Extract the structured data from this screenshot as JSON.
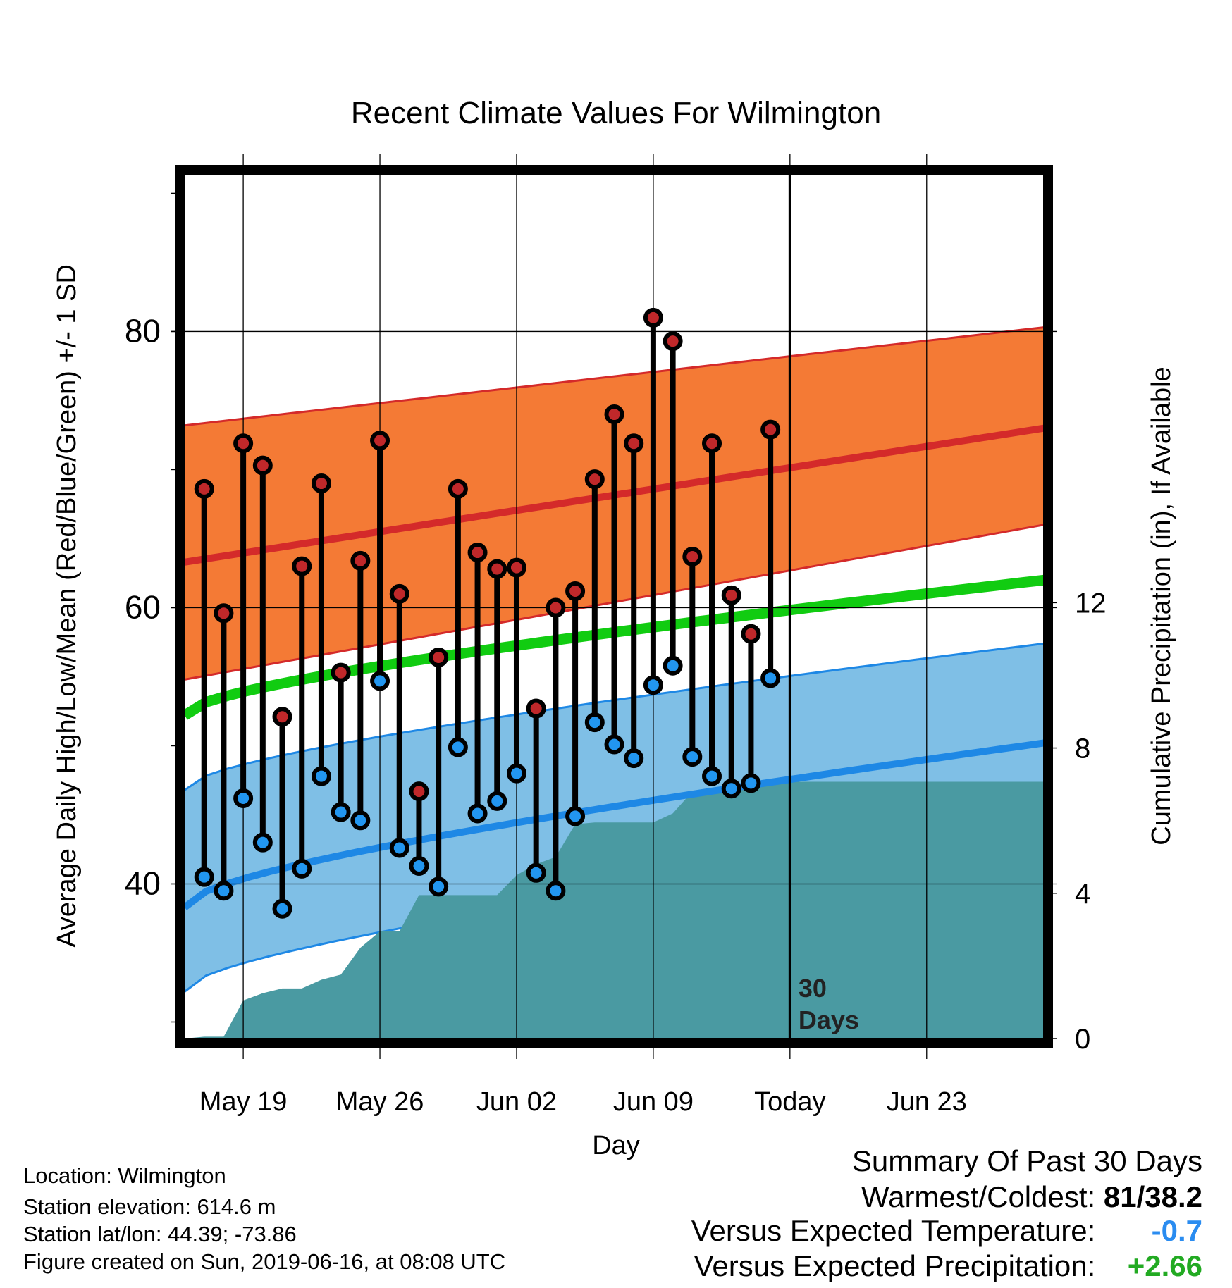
{
  "chart_data": {
    "type": "line",
    "title": "Recent Climate Values For Wilmington",
    "xlabel": "Day",
    "ylabel": "Average Daily High/Low/Mean (Red/Blue/Green) +/- 1 SD",
    "y2label": "Cumulative Precipitation (in), If Available",
    "ylim": [
      28.8,
      91.4
    ],
    "y2lim": [
      0,
      23.8
    ],
    "xlim": [
      "2019-05-16",
      "2019-06-29"
    ],
    "y_ticks": [
      "40",
      "60",
      "80"
    ],
    "y2_ticks": [
      "0",
      "4",
      "8",
      "12"
    ],
    "x_ticks": [
      {
        "date": "2019-05-19",
        "label": "May 19"
      },
      {
        "date": "2019-05-26",
        "label": "May 26"
      },
      {
        "date": "2019-06-02",
        "label": "Jun 02"
      },
      {
        "date": "2019-06-09",
        "label": "Jun 09"
      },
      {
        "date": "2019-06-16",
        "label": "Today"
      },
      {
        "date": "2019-06-23",
        "label": "Jun 23"
      }
    ],
    "today": "2019-06-16",
    "today_label_lines": [
      "30",
      "Days"
    ],
    "grid": true,
    "normals": {
      "dates": [
        "2019-05-16",
        "2019-06-29"
      ],
      "high_mean": [
        63.3,
        73.0
      ],
      "high_upper": [
        73.2,
        80.3
      ],
      "high_lower": [
        54.8,
        66.0
      ],
      "avg_mean": [
        52.2,
        62.0
      ],
      "low_mean": [
        38.3,
        50.2
      ],
      "low_upper": [
        46.8,
        57.4
      ],
      "low_lower": [
        32.2,
        44.0
      ]
    },
    "daily": {
      "dates": [
        "2019-05-17",
        "2019-05-18",
        "2019-05-19",
        "2019-05-20",
        "2019-05-21",
        "2019-05-22",
        "2019-05-23",
        "2019-05-24",
        "2019-05-25",
        "2019-05-26",
        "2019-05-27",
        "2019-05-28",
        "2019-05-29",
        "2019-05-30",
        "2019-05-31",
        "2019-06-01",
        "2019-06-02",
        "2019-06-03",
        "2019-06-04",
        "2019-06-05",
        "2019-06-06",
        "2019-06-07",
        "2019-06-08",
        "2019-06-09",
        "2019-06-10",
        "2019-06-11",
        "2019-06-12",
        "2019-06-13",
        "2019-06-14",
        "2019-06-15"
      ],
      "high": [
        68.6,
        59.6,
        71.9,
        70.3,
        52.1,
        63.0,
        69.0,
        55.3,
        63.4,
        72.1,
        61.0,
        46.7,
        56.4,
        68.6,
        64.0,
        62.8,
        62.9,
        52.7,
        60.0,
        61.2,
        69.3,
        74.0,
        71.9,
        81.0,
        79.3,
        63.7,
        71.9,
        60.9,
        58.1,
        72.9
      ],
      "low": [
        40.5,
        39.5,
        46.2,
        43.0,
        38.2,
        41.1,
        47.8,
        45.2,
        44.6,
        54.7,
        42.6,
        41.3,
        39.8,
        49.9,
        45.1,
        46.0,
        48.0,
        40.8,
        39.5,
        44.9,
        51.7,
        50.1,
        49.1,
        54.4,
        55.8,
        49.2,
        47.8,
        46.9,
        47.3,
        54.9
      ]
    },
    "precip": {
      "dates": [
        "2019-05-16",
        "2019-05-17",
        "2019-05-18",
        "2019-05-19",
        "2019-05-20",
        "2019-05-21",
        "2019-05-22",
        "2019-05-23",
        "2019-05-24",
        "2019-05-25",
        "2019-05-26",
        "2019-05-27",
        "2019-05-28",
        "2019-05-29",
        "2019-05-30",
        "2019-05-31",
        "2019-06-01",
        "2019-06-02",
        "2019-06-03",
        "2019-06-04",
        "2019-06-05",
        "2019-06-06",
        "2019-06-07",
        "2019-06-08",
        "2019-06-09",
        "2019-06-10",
        "2019-06-11",
        "2019-06-12",
        "2019-06-13",
        "2019-06-14",
        "2019-06-15",
        "2019-06-16",
        "2019-06-29"
      ],
      "values": [
        0.0,
        0.05,
        0.05,
        1.05,
        1.25,
        1.38,
        1.38,
        1.62,
        1.76,
        2.5,
        2.95,
        2.95,
        3.95,
        3.95,
        3.95,
        3.95,
        3.95,
        4.5,
        4.8,
        5.0,
        5.9,
        5.95,
        5.95,
        5.95,
        5.95,
        6.2,
        6.8,
        6.8,
        6.84,
        6.95,
        7.07,
        7.07,
        7.07
      ]
    }
  },
  "footer": {
    "location": "Location: Wilmington",
    "elevation": "Station elevation: 614.6 m",
    "latlon": "Station lat/lon: 44.39; -73.86",
    "created": "Figure created on Sun, 2019-06-16, at 08:08 UTC"
  },
  "summary": {
    "heading": "Summary Of Past 30 Days",
    "warmest_coldest_label": "Warmest/Coldest:",
    "warmest_coldest_value": "81/38.2",
    "temp_label": "Versus Expected Temperature:",
    "temp_value": "-0.7",
    "precip_label": "Versus Expected Precipitation:",
    "precip_value": "+2.66"
  },
  "colors": {
    "high_band": "#f47a35",
    "high_line": "#d42a2a",
    "avg_line": "#11cc11",
    "low_band": "#7fbfe6",
    "low_line": "#1e88e5",
    "precip": "#4a9aa2",
    "high_dot": "#c0282a",
    "low_dot": "#2296f0",
    "temp_value": "#2a8cf0",
    "precip_value": "#22aa22"
  }
}
